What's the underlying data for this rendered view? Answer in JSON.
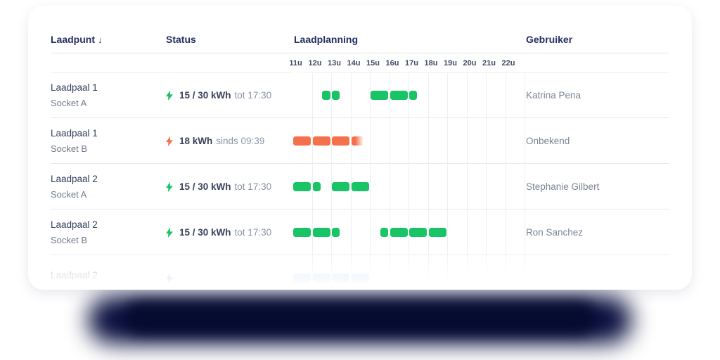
{
  "header": {
    "laadpunt": "Laadpunt",
    "sort_arrow": "↓",
    "status": "Status",
    "laadplanning": "Laadplanning",
    "gebruiker": "Gebruiker"
  },
  "time_axis": [
    "11u",
    "12u",
    "13u",
    "14u",
    "15u",
    "16u",
    "17u",
    "18u",
    "19u",
    "20u",
    "21u",
    "22u"
  ],
  "axis_start_hour": 11,
  "colors": {
    "green": "#18c465",
    "orange": "#f5714b",
    "blue": "#4a90f5",
    "light_blue": "#aed0ef",
    "header_text": "#232f66",
    "shadow_blob": "#0a1040",
    "shadow_blob_core": "#060b30"
  },
  "chart_data": {
    "type": "gantt",
    "x_ticks": [
      "11u",
      "12u",
      "13u",
      "14u",
      "15u",
      "16u",
      "17u",
      "18u",
      "19u",
      "20u",
      "21u",
      "22u"
    ],
    "note": "hours are decimal, axis starts at 11:00",
    "rows": [
      {
        "label": "Laadpaal 1 Socket A",
        "segments": [
          {
            "start": 12.5,
            "end": 13.5,
            "color": "green"
          },
          {
            "start": 15,
            "end": 17.5,
            "color": "green"
          }
        ]
      },
      {
        "label": "Laadpaal 1 Socket B",
        "segments": [
          {
            "start": 11,
            "end": 14.75,
            "color": "orange",
            "fade_end": true
          }
        ]
      },
      {
        "label": "Laadpaal 2 Socket A",
        "segments": [
          {
            "start": 11,
            "end": 12.5,
            "color": "green"
          },
          {
            "start": 13,
            "end": 15,
            "color": "green"
          }
        ]
      },
      {
        "label": "Laadpaal 2 Socket B",
        "segments": [
          {
            "start": 11,
            "end": 13.5,
            "color": "green"
          },
          {
            "start": 15.5,
            "end": 19,
            "color": "green"
          }
        ]
      },
      {
        "label": "Laadpaal 2",
        "segments": [
          {
            "start": 11,
            "end": 15,
            "color": "light_blue"
          }
        ]
      }
    ]
  },
  "rows": [
    {
      "name": "Laadpaal 1",
      "socket": "Socket A",
      "bolt": "green",
      "status_main": "15 / 30 kWh",
      "status_sub": "tot 17:30",
      "user": "Katrina Pena",
      "schedule": [
        {
          "start": 12.5,
          "end": 13.5,
          "color": "green"
        },
        {
          "start": 15,
          "end": 17.5,
          "color": "green"
        }
      ]
    },
    {
      "name": "Laadpaal 1",
      "socket": "Socket B",
      "bolt": "orange",
      "status_main": "18 kWh",
      "status_sub": "sinds 09:39",
      "user": "Onbekend",
      "schedule": [
        {
          "start": 11,
          "end": 14.75,
          "color": "orange",
          "fade_end": true
        }
      ]
    },
    {
      "name": "Laadpaal 2",
      "socket": "Socket A",
      "bolt": "green",
      "status_main": "15 / 30 kWh",
      "status_sub": "tot 17:30",
      "user": "Stephanie Gilbert",
      "schedule": [
        {
          "start": 11,
          "end": 12.5,
          "color": "green"
        },
        {
          "start": 13,
          "end": 15,
          "color": "green"
        }
      ]
    },
    {
      "name": "Laadpaal 2",
      "socket": "Socket B",
      "bolt": "green",
      "status_main": "15 / 30 kWh",
      "status_sub": "tot 17:30",
      "user": "Ron Sanchez",
      "schedule": [
        {
          "start": 11,
          "end": 13.5,
          "color": "green"
        },
        {
          "start": 15.5,
          "end": 16,
          "color": "green"
        },
        {
          "start": 16,
          "end": 19,
          "color": "green"
        }
      ]
    },
    {
      "name": "Laadpaal 2",
      "socket": "",
      "bolt": "blue",
      "status_main": "",
      "status_sub": "",
      "user": "",
      "schedule": [
        {
          "start": 11,
          "end": 15,
          "color": "light_blue"
        }
      ]
    }
  ]
}
